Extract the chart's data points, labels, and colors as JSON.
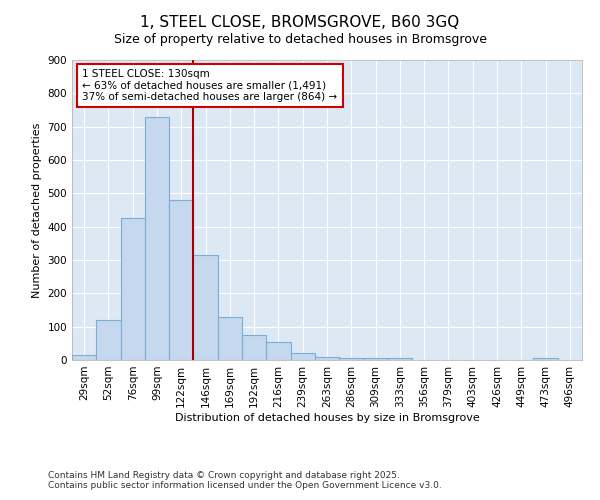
{
  "title": "1, STEEL CLOSE, BROMSGROVE, B60 3GQ",
  "subtitle": "Size of property relative to detached houses in Bromsgrove",
  "xlabel": "Distribution of detached houses by size in Bromsgrove",
  "ylabel": "Number of detached properties",
  "categories": [
    "29sqm",
    "52sqm",
    "76sqm",
    "99sqm",
    "122sqm",
    "146sqm",
    "169sqm",
    "192sqm",
    "216sqm",
    "239sqm",
    "263sqm",
    "286sqm",
    "309sqm",
    "333sqm",
    "356sqm",
    "379sqm",
    "403sqm",
    "426sqm",
    "449sqm",
    "473sqm",
    "496sqm"
  ],
  "values": [
    15,
    120,
    425,
    730,
    480,
    315,
    130,
    75,
    55,
    20,
    10,
    5,
    5,
    5,
    0,
    0,
    0,
    0,
    0,
    5,
    0
  ],
  "bar_color": "#c5d8ee",
  "bar_edge_color": "#7aafd4",
  "vline_x_index": 4,
  "vline_color": "#aa0000",
  "annotation_title": "1 STEEL CLOSE: 130sqm",
  "annotation_line1": "← 63% of detached houses are smaller (1,491)",
  "annotation_line2": "37% of semi-detached houses are larger (864) →",
  "annotation_box_color": "#cc0000",
  "footnote1": "Contains HM Land Registry data © Crown copyright and database right 2025.",
  "footnote2": "Contains public sector information licensed under the Open Government Licence v3.0.",
  "ylim": [
    0,
    900
  ],
  "yticks": [
    0,
    100,
    200,
    300,
    400,
    500,
    600,
    700,
    800,
    900
  ],
  "bg_color": "#dde8f5",
  "fig_bg_color": "#ffffff",
  "grid_color": "#ffffff",
  "title_fontsize": 11,
  "subtitle_fontsize": 9,
  "axis_label_fontsize": 8,
  "tick_fontsize": 7.5,
  "footnote_fontsize": 6.5
}
